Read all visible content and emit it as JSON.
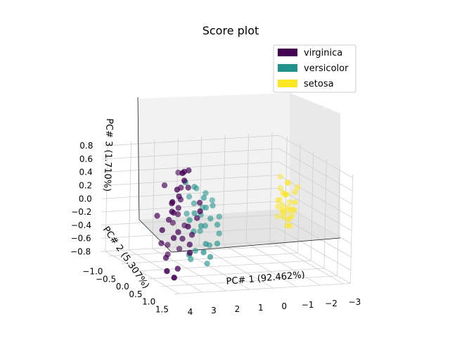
{
  "chart_data": {
    "type": "scatter",
    "projection": "3d",
    "title": "Score plot",
    "xlabel": "PC# 1 (92.462%)",
    "ylabel": "PC# 2 (5.307%)",
    "zlabel": "PC# 3 (1.710%)",
    "xlim": [
      -3.3,
      4.2
    ],
    "ylim": [
      -1.3,
      1.5
    ],
    "zlim": [
      -0.8,
      0.85
    ],
    "x_ticks": [
      "4",
      "3",
      "2",
      "1",
      "0",
      "−1",
      "−2",
      "−3"
    ],
    "y_ticks": [
      "−1.0",
      "−0.5",
      "0.0",
      "0.5",
      "1.0",
      "1.5"
    ],
    "z_ticks": [
      "0.8",
      "0.6",
      "0.4",
      "0.2",
      "0.0",
      "−0.2",
      "−0.4",
      "−0.6",
      "−0.8"
    ],
    "grid": true,
    "legend_position": "top-right",
    "legend": [
      {
        "label": "virginica",
        "color": "#440154"
      },
      {
        "label": "versicolor",
        "color": "#21918c"
      },
      {
        "label": "setosa",
        "color": "#fde725"
      }
    ],
    "series": [
      {
        "name": "virginica",
        "color": "#440154",
        "points": [
          [
            2.6,
            0.3,
            0.72
          ],
          [
            2.3,
            0.1,
            0.69
          ],
          [
            2.0,
            0.0,
            0.68
          ],
          [
            2.4,
            0.2,
            0.58
          ],
          [
            2.7,
            0.2,
            0.45
          ],
          [
            2.0,
            0.0,
            0.42
          ],
          [
            2.5,
            0.1,
            0.32
          ],
          [
            3.0,
            0.3,
            0.29
          ],
          [
            2.8,
            0.1,
            0.22
          ],
          [
            2.2,
            -0.1,
            0.22
          ],
          [
            2.4,
            0.0,
            0.12
          ],
          [
            2.9,
            0.2,
            0.12
          ],
          [
            2.6,
            0.0,
            0.05
          ],
          [
            2.3,
            -0.1,
            0.0
          ],
          [
            2.8,
            0.0,
            -0.05
          ],
          [
            2.2,
            0.2,
            -0.12
          ],
          [
            3.3,
            0.2,
            -0.15
          ],
          [
            2.5,
            0.1,
            -0.22
          ],
          [
            1.9,
            -0.2,
            -0.2
          ],
          [
            2.8,
            0.2,
            -0.28
          ],
          [
            2.2,
            0.0,
            -0.35
          ],
          [
            3.1,
            0.0,
            -0.4
          ],
          [
            2.6,
            -0.2,
            -0.48
          ],
          [
            2.1,
            0.2,
            -0.52
          ],
          [
            3.0,
            0.1,
            -0.6
          ],
          [
            2.7,
            -0.1,
            -0.6
          ],
          [
            3.4,
            0.5,
            -0.7
          ],
          [
            3.2,
            0.6,
            -0.78
          ],
          [
            2.6,
            0.2,
            -0.75
          ],
          [
            2.1,
            -0.2,
            -0.55
          ],
          [
            1.8,
            0.0,
            -0.3
          ],
          [
            2.9,
            -0.1,
            0.45
          ],
          [
            2.2,
            -0.1,
            0.4
          ],
          [
            3.3,
            0.0,
            0.02
          ],
          [
            1.7,
            0.2,
            0.1
          ],
          [
            1.6,
            0.0,
            -0.05
          ],
          [
            2.0,
            0.1,
            -0.42
          ],
          [
            2.4,
            -0.2,
            -0.15
          ],
          [
            1.5,
            0.0,
            0.18
          ],
          [
            2.1,
            -0.3,
            0.58
          ]
        ]
      },
      {
        "name": "versicolor",
        "color": "#21918c",
        "points": [
          [
            1.9,
            -0.2,
            0.45
          ],
          [
            1.4,
            -0.3,
            0.35
          ],
          [
            0.8,
            -0.4,
            0.22
          ],
          [
            1.1,
            -0.2,
            0.2
          ],
          [
            0.4,
            -0.5,
            0.08
          ],
          [
            0.6,
            -0.3,
            0.05
          ],
          [
            1.6,
            -0.1,
            0.0
          ],
          [
            1.1,
            -0.3,
            -0.08
          ],
          [
            0.8,
            -0.2,
            -0.12
          ],
          [
            0.2,
            -0.4,
            -0.15
          ],
          [
            1.3,
            -0.1,
            -0.2
          ],
          [
            0.9,
            -0.3,
            -0.25
          ],
          [
            0.5,
            -0.2,
            -0.22
          ],
          [
            1.5,
            -0.2,
            -0.3
          ],
          [
            1.0,
            -0.4,
            -0.35
          ],
          [
            1.2,
            0.0,
            -0.45
          ],
          [
            0.7,
            -0.3,
            -0.55
          ],
          [
            1.3,
            -0.3,
            -0.62
          ],
          [
            1.0,
            0.0,
            -0.65
          ],
          [
            1.6,
            -0.2,
            -0.72
          ],
          [
            0.9,
            -0.2,
            -0.8
          ],
          [
            1.8,
            -0.1,
            -0.1
          ],
          [
            1.4,
            -0.3,
            0.1
          ],
          [
            0.3,
            -0.3,
            -0.38
          ],
          [
            1.2,
            -0.4,
            0.3
          ],
          [
            1.7,
            -0.3,
            -0.05
          ],
          [
            0.6,
            -0.1,
            -0.48
          ],
          [
            1.4,
            0.1,
            -0.55
          ],
          [
            1.0,
            -0.2,
            0.05
          ],
          [
            1.9,
            0.0,
            -0.6
          ],
          [
            0.8,
            -0.5,
            -0.02
          ],
          [
            1.5,
            -0.4,
            0.18
          ]
        ]
      },
      {
        "name": "setosa",
        "color": "#fde725",
        "points": [
          [
            -2.6,
            -0.6,
            0.35
          ],
          [
            -2.7,
            -0.4,
            0.3
          ],
          [
            -2.8,
            -0.5,
            0.28
          ],
          [
            -2.5,
            -0.5,
            0.2
          ],
          [
            -2.9,
            -0.3,
            0.18
          ],
          [
            -2.6,
            -0.4,
            0.12
          ],
          [
            -2.7,
            -0.5,
            0.1
          ],
          [
            -2.8,
            -0.2,
            0.05
          ],
          [
            -2.4,
            -0.5,
            0.02
          ],
          [
            -2.9,
            -0.5,
            -0.02
          ],
          [
            -2.6,
            -0.3,
            -0.05
          ],
          [
            -2.7,
            -0.6,
            -0.08
          ],
          [
            -2.5,
            -0.4,
            -0.1
          ],
          [
            -2.8,
            -0.4,
            -0.12
          ],
          [
            -2.6,
            -0.5,
            -0.15
          ],
          [
            -2.9,
            -0.4,
            -0.2
          ],
          [
            -2.7,
            -0.3,
            -0.22
          ],
          [
            -2.5,
            -0.6,
            -0.25
          ],
          [
            -2.8,
            -0.5,
            -0.28
          ],
          [
            -2.6,
            -0.2,
            -0.3
          ],
          [
            -2.7,
            -0.4,
            -0.35
          ],
          [
            -3.0,
            -0.3,
            0.25
          ],
          [
            -2.4,
            -0.3,
            -0.18
          ],
          [
            -2.9,
            -0.6,
            0.08
          ],
          [
            -2.6,
            -0.6,
            0.0
          ],
          [
            -2.8,
            -0.3,
            -0.08
          ],
          [
            -2.5,
            -0.4,
            0.15
          ],
          [
            -2.7,
            -0.5,
            -0.18
          ],
          [
            -2.3,
            -0.4,
            -0.05
          ],
          [
            -3.0,
            -0.4,
            -0.12
          ]
        ]
      }
    ]
  }
}
